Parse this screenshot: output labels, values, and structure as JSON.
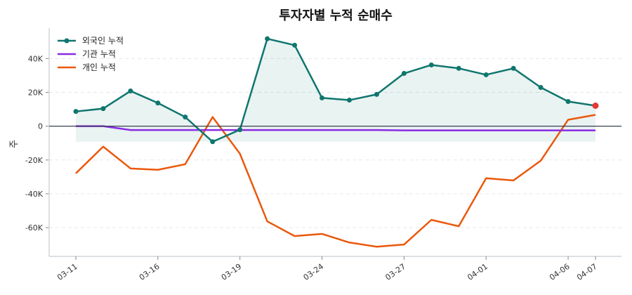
{
  "chart_data": {
    "type": "line",
    "title": "투자자별 누적 순매수",
    "ylabel": "주",
    "xlabel": "",
    "x": [
      "03-11",
      "03-12",
      "03-13",
      "03-16",
      "03-17",
      "03-18",
      "03-19",
      "03-20",
      "03-23",
      "03-24",
      "03-25",
      "03-26",
      "03-27",
      "03-30",
      "03-31",
      "04-01",
      "04-02",
      "04-03",
      "04-06",
      "04-07"
    ],
    "xticks": [
      "03-11",
      "03-16",
      "03-19",
      "03-24",
      "03-27",
      "04-01",
      "04-06",
      "04-07"
    ],
    "yticks": [
      40000,
      20000,
      0,
      -20000,
      -40000,
      -60000
    ],
    "ytick_labels": [
      "40K",
      "20K",
      "0",
      "-20K",
      "-40K",
      "-60K"
    ],
    "ylim": [
      -77000,
      58000
    ],
    "grid": true,
    "legend": "top-left",
    "series": [
      {
        "name": "외국인 누적",
        "color": "#0f766e",
        "marker": true,
        "values": [
          8700,
          10400,
          20800,
          13700,
          5400,
          -9200,
          -2100,
          51700,
          47900,
          16700,
          15400,
          18800,
          31200,
          36200,
          34200,
          30400,
          34200,
          22900,
          14600,
          12100
        ]
      },
      {
        "name": "기관 누적",
        "color": "#8a2be2",
        "marker": false,
        "values": [
          0,
          0,
          -2300,
          -2300,
          -2300,
          -2300,
          -2300,
          -2300,
          -2300,
          -2300,
          -2300,
          -2300,
          -2500,
          -2500,
          -2500,
          -2500,
          -2500,
          -2500,
          -2500,
          -2500
        ]
      },
      {
        "name": "개인 누적",
        "color": "#ea580c",
        "marker": false,
        "values": [
          -27900,
          -12100,
          -25000,
          -25800,
          -22500,
          5400,
          -16300,
          -56300,
          -65000,
          -63700,
          -68800,
          -71300,
          -70000,
          -55400,
          -59200,
          -30800,
          -32100,
          -20400,
          3800,
          6700
        ]
      }
    ],
    "last_point_color": "#e53935"
  }
}
